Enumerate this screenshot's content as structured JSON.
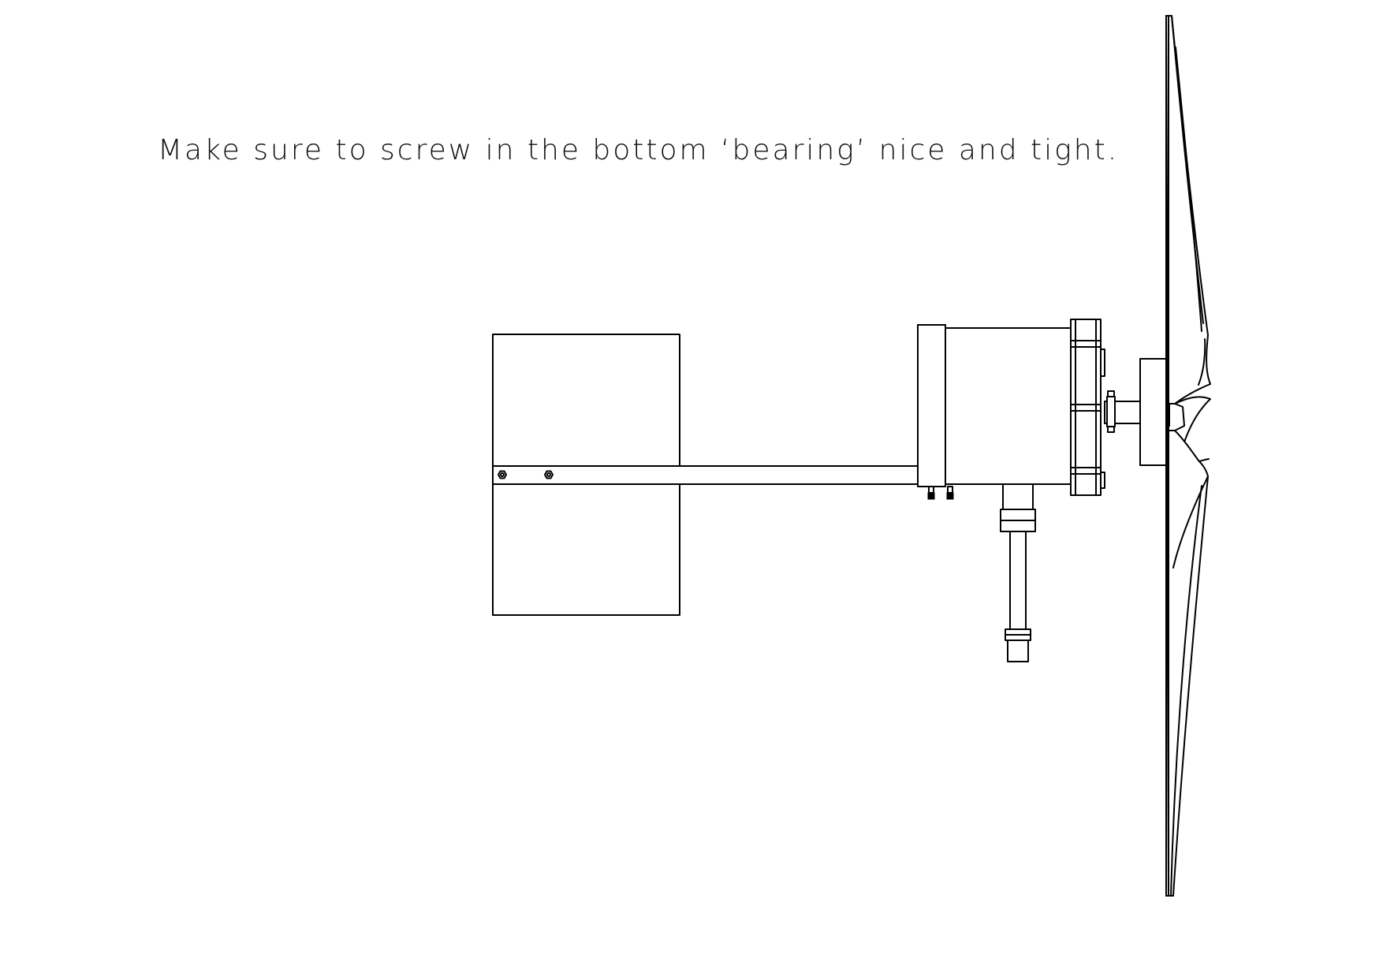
{
  "instruction": {
    "text": "Make sure to screw in the bottom ‘bearing’ nice and tight."
  },
  "colors": {
    "background": "#ffffff",
    "line": "#000000",
    "text": "#111111"
  }
}
